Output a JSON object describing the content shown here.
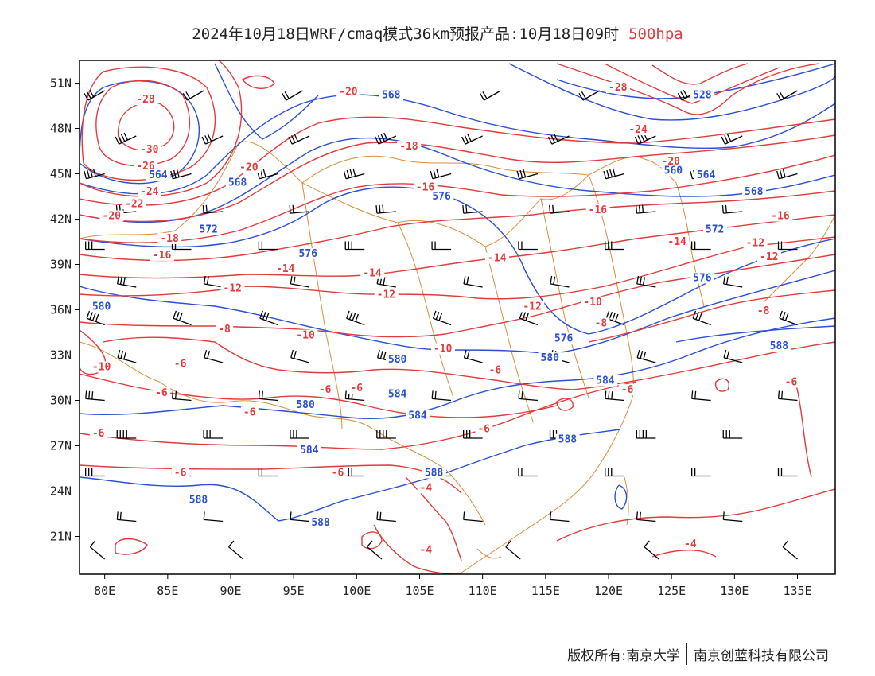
{
  "title": {
    "main": "2024年10月18日WRF/cmaq模式36km预报产品:10月18日09时",
    "level": "500hpa"
  },
  "footer": {
    "copyright_label": "版权所有:",
    "owner_1": "南京大学",
    "owner_2": "南京创蓝科技有限公司"
  },
  "map": {
    "lon_ticks": [
      "80E",
      "85E",
      "90E",
      "95E",
      "100E",
      "105E",
      "110E",
      "115E",
      "120E",
      "125E",
      "130E",
      "135E"
    ],
    "lon_values": [
      80,
      85,
      90,
      95,
      100,
      105,
      110,
      115,
      120,
      125,
      130,
      135
    ],
    "lat_ticks": [
      "21N",
      "24N",
      "27N",
      "30N",
      "33N",
      "36N",
      "39N",
      "42N",
      "45N",
      "48N",
      "51N"
    ],
    "lat_values": [
      21,
      24,
      27,
      30,
      33,
      36,
      39,
      42,
      45,
      48,
      51
    ],
    "lon_range": [
      78,
      138
    ],
    "lat_range": [
      18.5,
      52.5
    ],
    "colors": {
      "temperature": "#e23b3b",
      "height": "#2a4fd6",
      "border": "#d98c3a",
      "wind": "#000000",
      "frame": "#000000"
    },
    "temperature_labels": [
      {
        "text": "-28",
        "lon": 82.5,
        "lat": 49.7
      },
      {
        "text": "-30",
        "lon": 82.8,
        "lat": 46.4
      },
      {
        "text": "-26",
        "lon": 82.5,
        "lat": 45.3
      },
      {
        "text": "-24",
        "lon": 82.8,
        "lat": 43.6
      },
      {
        "text": "-22",
        "lon": 81.6,
        "lat": 42.8
      },
      {
        "text": "-20",
        "lon": 79.8,
        "lat": 42.0
      },
      {
        "text": "-20",
        "lon": 98.6,
        "lat": 50.2
      },
      {
        "text": "-20",
        "lon": 90.7,
        "lat": 45.2
      },
      {
        "text": "-18",
        "lon": 103.4,
        "lat": 46.6
      },
      {
        "text": "-18",
        "lon": 84.4,
        "lat": 40.5
      },
      {
        "text": "-16",
        "lon": 83.8,
        "lat": 39.4
      },
      {
        "text": "-16",
        "lon": 104.7,
        "lat": 43.9
      },
      {
        "text": "-16",
        "lon": 118.4,
        "lat": 42.4
      },
      {
        "text": "-16",
        "lon": 132.9,
        "lat": 42.0
      },
      {
        "text": "-14",
        "lon": 93.6,
        "lat": 38.5
      },
      {
        "text": "-14",
        "lon": 100.5,
        "lat": 38.2
      },
      {
        "text": "-14",
        "lon": 110.4,
        "lat": 39.2
      },
      {
        "text": "-14",
        "lon": 124.7,
        "lat": 40.3
      },
      {
        "text": "-12",
        "lon": 89.4,
        "lat": 37.2
      },
      {
        "text": "-12",
        "lon": 101.6,
        "lat": 36.8
      },
      {
        "text": "-12",
        "lon": 130.9,
        "lat": 40.2
      },
      {
        "text": "-12",
        "lon": 132.0,
        "lat": 39.3
      },
      {
        "text": "-12",
        "lon": 113.2,
        "lat": 36.0
      },
      {
        "text": "-10",
        "lon": 118.0,
        "lat": 36.3
      },
      {
        "text": "-10",
        "lon": 95.2,
        "lat": 34.1
      },
      {
        "text": "-10",
        "lon": 106.1,
        "lat": 33.2
      },
      {
        "text": "-10",
        "lon": 79.0,
        "lat": 32.0
      },
      {
        "text": "-8",
        "lon": 89.0,
        "lat": 34.5
      },
      {
        "text": "-8",
        "lon": 118.9,
        "lat": 34.9
      },
      {
        "text": "-8",
        "lon": 131.8,
        "lat": 35.7
      },
      {
        "text": "-6",
        "lon": 85.5,
        "lat": 32.2
      },
      {
        "text": "-6",
        "lon": 84.0,
        "lat": 30.3
      },
      {
        "text": "-6",
        "lon": 91.0,
        "lat": 29.0
      },
      {
        "text": "-6",
        "lon": 97.0,
        "lat": 30.5
      },
      {
        "text": "-6",
        "lon": 99.5,
        "lat": 30.6
      },
      {
        "text": "-6",
        "lon": 110.5,
        "lat": 31.8
      },
      {
        "text": "-6",
        "lon": 121.0,
        "lat": 30.5
      },
      {
        "text": "-6",
        "lon": 134.0,
        "lat": 31.0
      },
      {
        "text": "-6",
        "lon": 109.6,
        "lat": 27.9
      },
      {
        "text": "-6",
        "lon": 79.0,
        "lat": 27.6
      },
      {
        "text": "-6",
        "lon": 85.5,
        "lat": 25.0
      },
      {
        "text": "-6",
        "lon": 98.0,
        "lat": 25.0
      },
      {
        "text": "-4",
        "lon": 105.0,
        "lat": 24.0
      },
      {
        "text": "-4",
        "lon": 105.0,
        "lat": 19.9
      },
      {
        "text": "-4",
        "lon": 126.0,
        "lat": 20.3
      },
      {
        "text": "-24",
        "lon": 121.6,
        "lat": 47.7
      },
      {
        "text": "-20",
        "lon": 124.2,
        "lat": 45.6
      },
      {
        "text": "-28",
        "lon": 120.0,
        "lat": 50.5
      }
    ],
    "height_labels": [
      {
        "text": "568",
        "lon": 102.0,
        "lat": 50.0
      },
      {
        "text": "564",
        "lon": 83.5,
        "lat": 44.7
      },
      {
        "text": "568",
        "lon": 89.8,
        "lat": 44.2
      },
      {
        "text": "572",
        "lon": 87.5,
        "lat": 41.1
      },
      {
        "text": "576",
        "lon": 95.4,
        "lat": 39.5
      },
      {
        "text": "576",
        "lon": 106.0,
        "lat": 43.3
      },
      {
        "text": "580",
        "lon": 79.0,
        "lat": 36.0
      },
      {
        "text": "580",
        "lon": 102.5,
        "lat": 32.5
      },
      {
        "text": "584",
        "lon": 102.5,
        "lat": 30.2
      },
      {
        "text": "584",
        "lon": 104.1,
        "lat": 28.8
      },
      {
        "text": "580",
        "lon": 95.2,
        "lat": 29.5
      },
      {
        "text": "584",
        "lon": 95.5,
        "lat": 26.5
      },
      {
        "text": "588",
        "lon": 105.4,
        "lat": 25.0
      },
      {
        "text": "588",
        "lon": 86.7,
        "lat": 23.2
      },
      {
        "text": "588",
        "lon": 96.4,
        "lat": 21.7
      },
      {
        "text": "576",
        "lon": 115.7,
        "lat": 33.9
      },
      {
        "text": "580",
        "lon": 114.6,
        "lat": 32.6
      },
      {
        "text": "584",
        "lon": 119.0,
        "lat": 31.1
      },
      {
        "text": "588",
        "lon": 116.0,
        "lat": 27.2
      },
      {
        "text": "588",
        "lon": 132.8,
        "lat": 33.4
      },
      {
        "text": "572",
        "lon": 127.7,
        "lat": 41.1
      },
      {
        "text": "576",
        "lon": 126.7,
        "lat": 37.9
      },
      {
        "text": "564",
        "lon": 127.0,
        "lat": 44.7
      },
      {
        "text": "568",
        "lon": 130.8,
        "lat": 43.6
      },
      {
        "text": "560",
        "lon": 124.4,
        "lat": 45.0
      },
      {
        "text": "528",
        "lon": 126.7,
        "lat": 50.0
      }
    ]
  }
}
